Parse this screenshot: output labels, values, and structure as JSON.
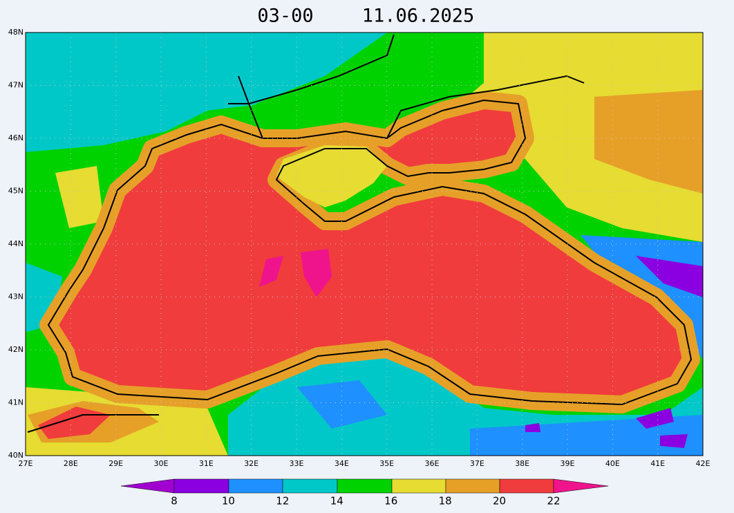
{
  "title": {
    "time": "03-00",
    "date": "11.06.2025"
  },
  "axes": {
    "lat_labels": [
      "40N",
      "41N",
      "42N",
      "43N",
      "44N",
      "45N",
      "46N",
      "47N",
      "48N"
    ],
    "lon_labels": [
      "27E",
      "28E",
      "29E",
      "30E",
      "31E",
      "32E",
      "33E",
      "34E",
      "35E",
      "36E",
      "37E",
      "38E",
      "39E",
      "40E",
      "41E",
      "42E"
    ]
  },
  "colorbar": {
    "labels": [
      8,
      10,
      12,
      14,
      16,
      18,
      20,
      22
    ]
  }
}
